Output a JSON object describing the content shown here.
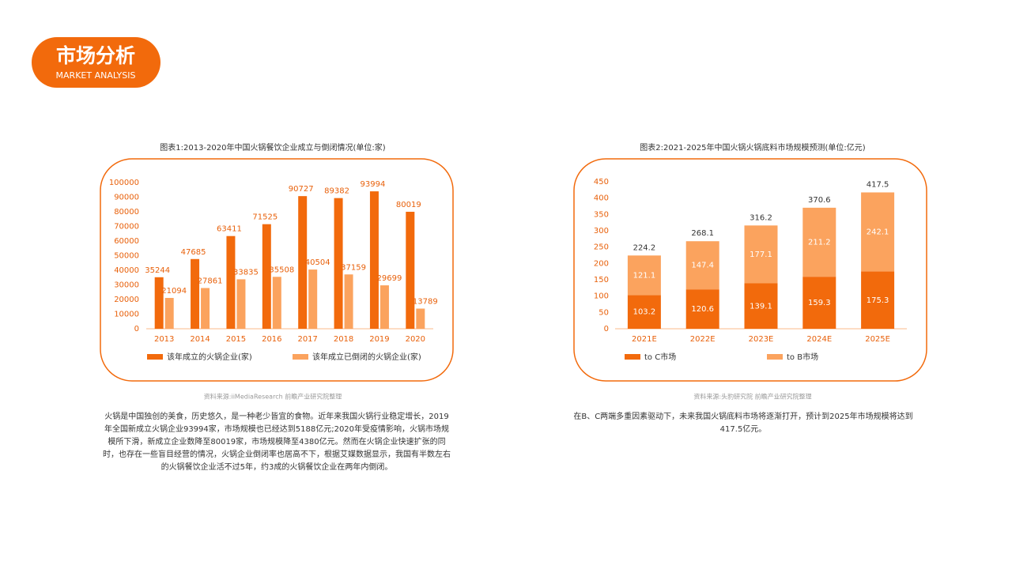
{
  "header": {
    "title": "市场分析",
    "subtitle": "MARKET ANALYSIS"
  },
  "chart_data": [
    {
      "type": "bar",
      "title": "图表1:2013-2020年中国火锅餐饮企业成立与倒闭情况(单位:家)",
      "categories": [
        "2013",
        "2014",
        "2015",
        "2016",
        "2017",
        "2018",
        "2019",
        "2020"
      ],
      "series": [
        {
          "name": "该年成立的火锅企业(家)",
          "color": "#f26a0c",
          "values": [
            35244,
            47685,
            63411,
            71525,
            90727,
            89382,
            93994,
            80019
          ]
        },
        {
          "name": "该年成立已倒闭的火锅企业(家)",
          "color": "#fba35e",
          "values": [
            21094,
            27861,
            33835,
            35508,
            40504,
            37159,
            29699,
            13789
          ]
        }
      ],
      "ylim": [
        0,
        100000
      ],
      "yticks": [
        0,
        10000,
        20000,
        30000,
        40000,
        50000,
        60000,
        70000,
        80000,
        90000,
        100000
      ],
      "source": "资料来源:iiMediaResearch 前瞻产业研究院整理",
      "description": "火锅是中国独创的美食，历史悠久，是一种老少皆宜的食物。近年来我国火锅行业稳定增长，2019年全国新成立火锅企业93994家，市场规模也已经达到5188亿元;2020年受疫情影响，火锅市场规模所下滑，新成立企业数降至80019家，市场规模降至4380亿元。然而在火锅企业快速扩张的同时，也存在一些盲目经营的情况，火锅企业倒闭率也居高不下，根据艾媒数据显示，我国有半数左右的火锅餐饮企业活不过5年，约3成的火锅餐饮企业在两年内倒闭。"
    },
    {
      "type": "stacked_bar",
      "title": "图表2:2021-2025年中国火锅火锅底料市场规模预测(单位:亿元)",
      "categories": [
        "2021E",
        "2022E",
        "2023E",
        "2024E",
        "2025E"
      ],
      "series": [
        {
          "name": "to C市场",
          "color": "#f26a0c",
          "values": [
            103.2,
            120.6,
            139.1,
            159.3,
            175.3
          ]
        },
        {
          "name": "to B市场",
          "color": "#fba35e",
          "values": [
            121.1,
            147.4,
            177.1,
            211.2,
            242.1
          ]
        }
      ],
      "totals": [
        224.2,
        268.1,
        316.2,
        370.6,
        417.5
      ],
      "ylim": [
        0,
        450
      ],
      "yticks": [
        0,
        50,
        100,
        150,
        200,
        250,
        300,
        350,
        400,
        450
      ],
      "source": "资料来源:头豹研究院 前瞻产业研究院整理",
      "description": "在B、C两端多重因素驱动下，未来我国火锅底料市场将逐渐打开，预计到2025年市场规模将达到417.5亿元。"
    }
  ]
}
